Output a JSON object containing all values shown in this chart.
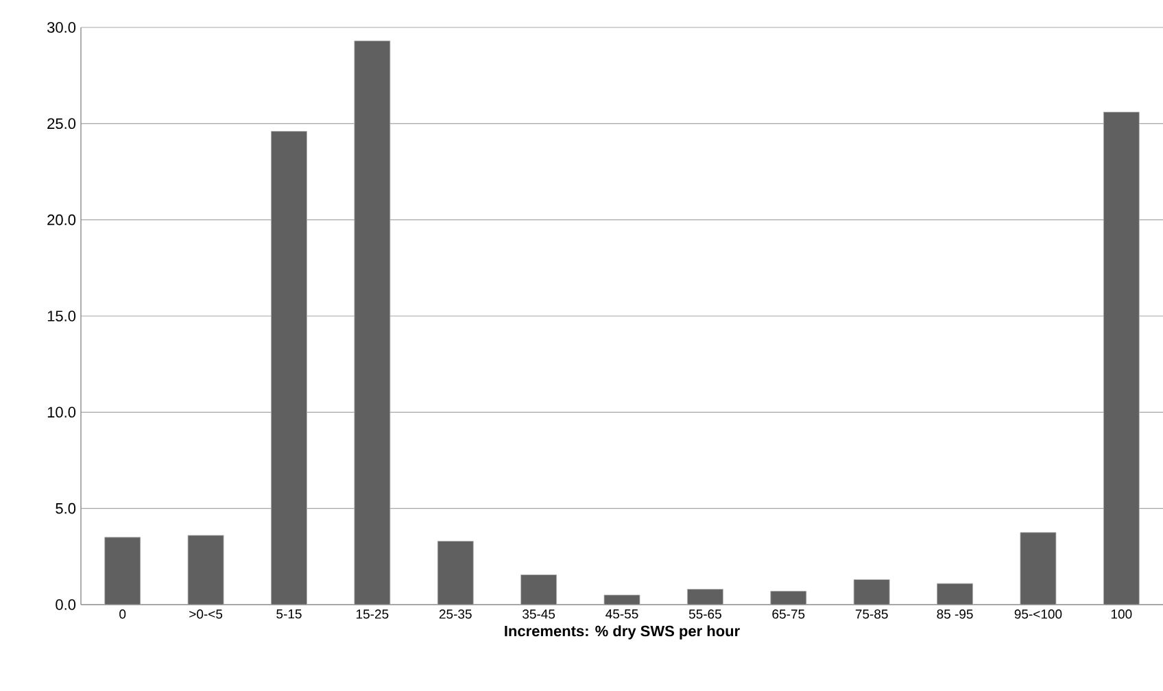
{
  "chart_data": {
    "type": "bar",
    "xlabel": "**Increments:  % dry SWS per hour**",
    "categories": [
      "0",
      ">0-<5",
      "5-15",
      "15-25",
      "25-35",
      "35-45",
      "45-55",
      "55-65",
      "65-75",
      "75-85",
      "85 -95",
      "95-<100",
      "100"
    ],
    "values": [
      3.5,
      3.6,
      24.6,
      29.3,
      3.3,
      1.55,
      0.5,
      0.8,
      0.7,
      1.3,
      1.1,
      3.75,
      25.6
    ],
    "color": "#606060",
    "ylim": [
      0,
      30
    ],
    "yticks": [
      {
        "value": 0,
        "label": "0.0"
      },
      {
        "value": 5,
        "label": "5.0"
      },
      {
        "value": 10,
        "label": "10.0"
      },
      {
        "value": 15,
        "label": "15.0"
      },
      {
        "value": 20,
        "label": "20.0"
      },
      {
        "value": 25,
        "label": "25.0"
      },
      {
        "value": 30,
        "label": "30.0"
      }
    ],
    "grid": "y"
  }
}
